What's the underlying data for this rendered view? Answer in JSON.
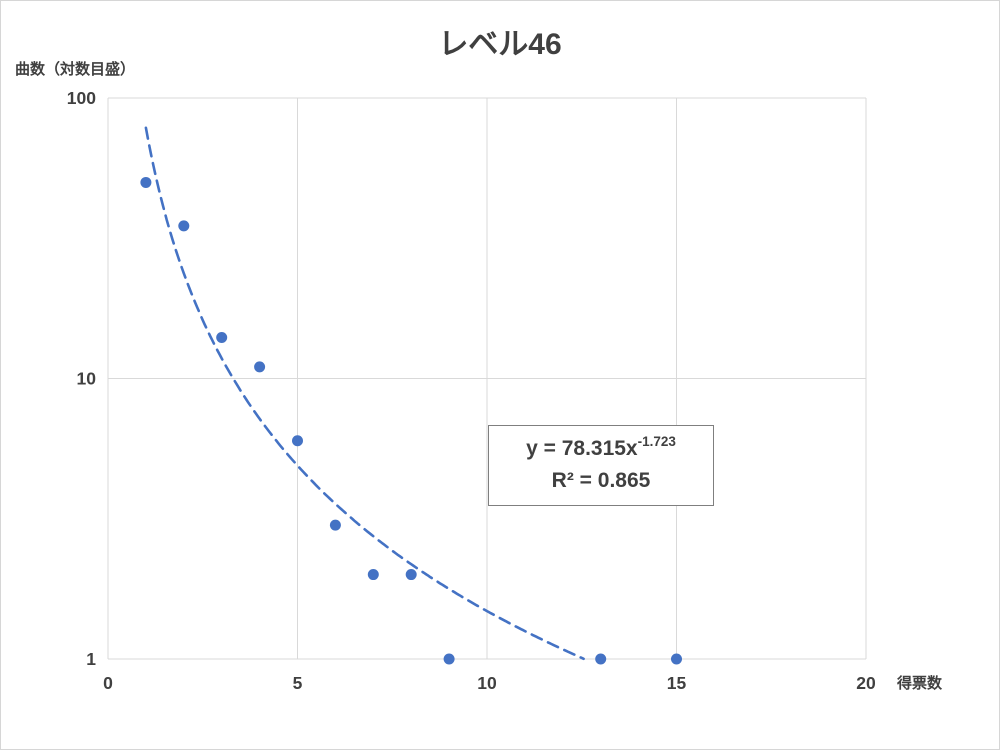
{
  "equation": {
    "base": "y = 78.315x",
    "exponent": "-1.723",
    "r2_text": "R² = 0.865"
  },
  "chart_data": {
    "type": "scatter",
    "title": "レベル46",
    "xlabel": "得票数",
    "ylabel": "曲数（対数目盛）",
    "x": [
      1,
      2,
      3,
      4,
      5,
      6,
      7,
      8,
      9,
      13,
      15
    ],
    "y": [
      50,
      35,
      14,
      11,
      6,
      3,
      2,
      2,
      1,
      1,
      1
    ],
    "xlim": [
      0,
      20
    ],
    "ylim": [
      1,
      100
    ],
    "y_scale": "log",
    "x_scale": "linear",
    "x_ticks": [
      0,
      5,
      10,
      15,
      20
    ],
    "y_ticks": [
      1,
      10,
      100
    ],
    "grid": true,
    "grid_color": "#d9d9d9",
    "point_color": "#4472c4",
    "legend": "none",
    "trendline": {
      "type": "power",
      "coefficient": 78.315,
      "exponent": -1.723,
      "r_squared": 0.865,
      "equation_label": "y = 78.315x⁻¹·⁷²³",
      "r2_label": "R² = 0.865",
      "color": "#4472c4",
      "style": "dashed",
      "x_range": [
        1,
        12.56
      ]
    }
  }
}
